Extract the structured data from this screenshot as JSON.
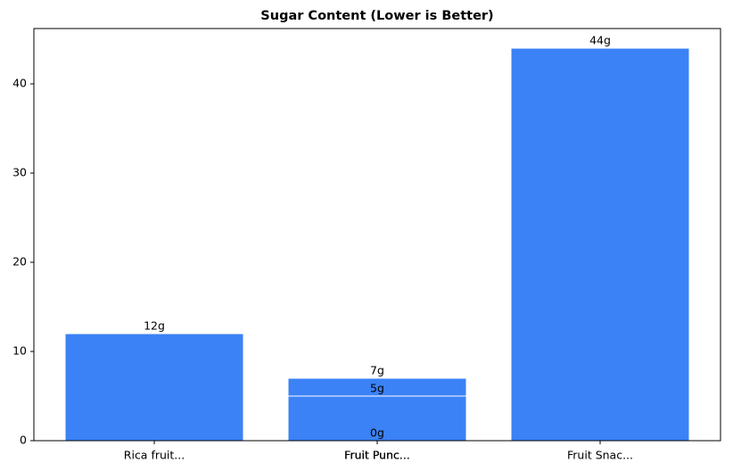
{
  "chart_data": {
    "type": "bar",
    "title": "Sugar Content (Lower is Better)",
    "categories": [
      "Rica fruit...",
      "Fruit Punc...",
      "Fruit Punc...",
      "Fruit Punc...",
      "Fruit Snac..."
    ],
    "values": [
      12,
      7,
      5,
      0,
      44
    ],
    "value_labels": [
      "12g",
      "7g",
      "5g",
      "0g",
      "44g"
    ],
    "color": "#3b82f6",
    "edgecolor": "#ffffff",
    "ylim": [
      0,
      46.2
    ],
    "yticks": [
      0,
      10,
      20,
      30,
      40
    ],
    "grid": false
  }
}
